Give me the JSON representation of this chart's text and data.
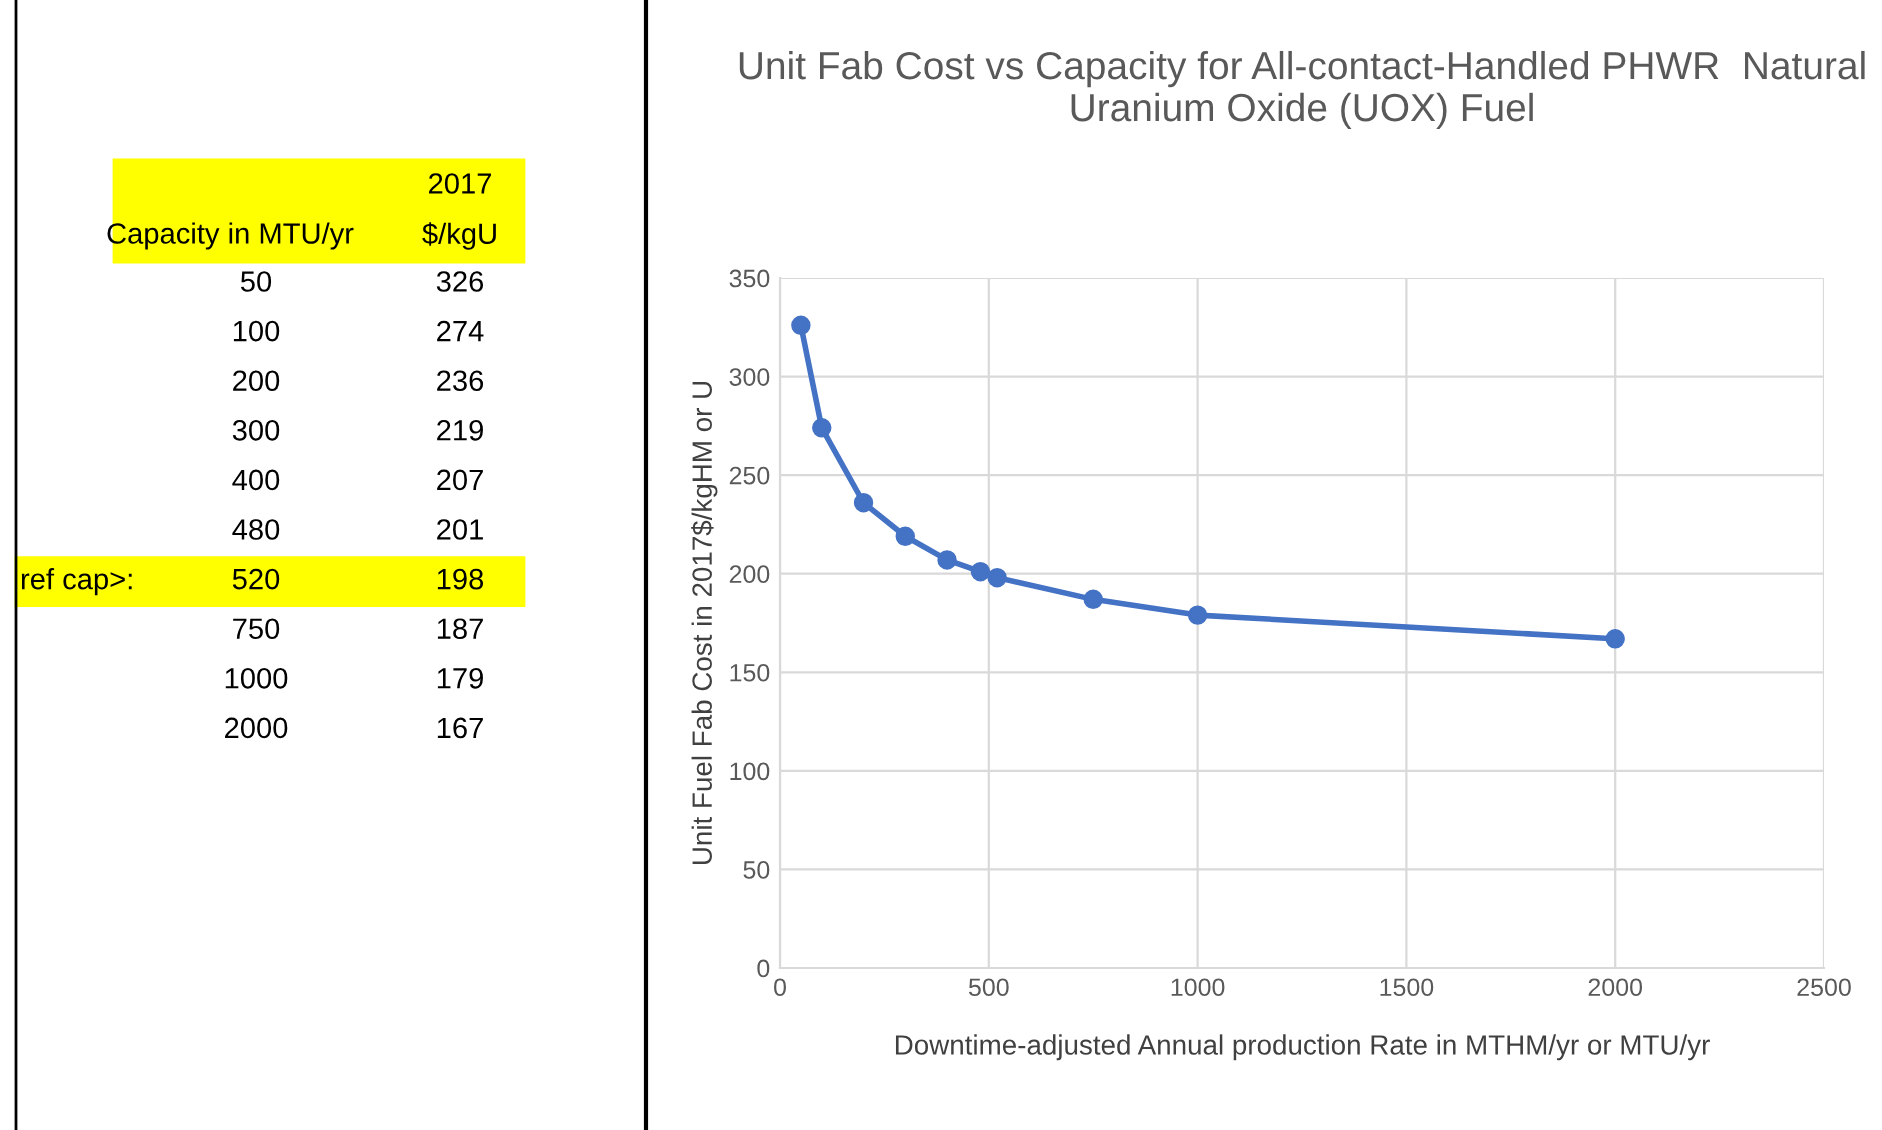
{
  "chart_data": [
    {
      "type": "other",
      "annotations": [
        "Capacity in MTU/yr",
        "2017",
        "$/kgU",
        "ref cap>:",
        "50",
        "326",
        "100",
        "274",
        "200",
        "236",
        "300",
        "219",
        "400",
        "207",
        "480",
        "201",
        "520",
        "198",
        "750",
        "187",
        "1000",
        "179",
        "2000",
        "167"
      ]
    },
    {
      "type": "line",
      "title": "Unit Fab Cost vs Capacity for All-contact-Handled PHWR  Natural Uranium Oxide (UOX) Fuel",
      "xlabel": "Downtime-adjusted Annual production Rate in MTHM/yr or MTU/yr",
      "ylabel": "Unit Fuel Fab Cost in 2017$/kgHM or U",
      "x": [
        50,
        100,
        200,
        300,
        400,
        480,
        520,
        750,
        1000,
        2000
      ],
      "series": [
        {
          "color": "#4472c4",
          "values": [
            326,
            274,
            236,
            219,
            207,
            201,
            198,
            187,
            179,
            167
          ]
        }
      ],
      "xlim": [
        0,
        2500
      ],
      "xticks": [
        0,
        500,
        1000,
        1500,
        2000,
        2500
      ],
      "ylim": [
        0,
        350
      ],
      "yticks": [
        0,
        50,
        100,
        150,
        200,
        250,
        300,
        350
      ],
      "grid": true,
      "marker": "circle",
      "line_style": "solid"
    }
  ]
}
